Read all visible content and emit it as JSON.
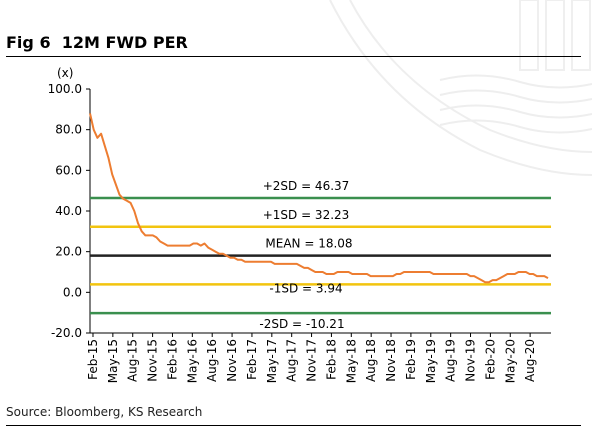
{
  "figure": {
    "title": "Fig 6  12M FWD PER",
    "source": "Source: Bloomberg, KS Research"
  },
  "chart_data": {
    "type": "line",
    "title": "Fig 6  12M FWD PER",
    "unit_label": "(x)",
    "xlabel": "",
    "ylabel": "",
    "ylim": [
      -20,
      100
    ],
    "yticks": [
      "100.0",
      "80.0",
      "60.0",
      "40.0",
      "20.0",
      "0.0",
      "-20.0"
    ],
    "ytick_values": [
      100,
      80,
      60,
      40,
      20,
      0,
      -20
    ],
    "xticks": [
      "Feb-15",
      "May-15",
      "Aug-15",
      "Nov-15",
      "Feb-16",
      "May-16",
      "Aug-16",
      "Nov-16",
      "Feb-17",
      "May-17",
      "Aug-17",
      "Nov-17",
      "Feb-18",
      "May-18",
      "Aug-18",
      "Nov-18",
      "Feb-19",
      "May-19",
      "Aug-19",
      "Nov-19",
      "Feb-20",
      "May-20",
      "Aug-20"
    ],
    "grid": false,
    "colors": {
      "series": "#ED7D31",
      "sd2": "#3A8F4E",
      "sd1": "#F2C40F",
      "mean": "#222222"
    },
    "series": [
      {
        "values": [
          [
            0,
            88
          ],
          [
            0.3,
            80
          ],
          [
            0.6,
            76
          ],
          [
            0.9,
            78
          ],
          [
            1.2,
            72
          ],
          [
            1.5,
            66
          ],
          [
            1.8,
            58
          ],
          [
            2.1,
            53
          ],
          [
            2.4,
            48
          ],
          [
            2.7,
            46
          ],
          [
            3.0,
            45
          ],
          [
            3.3,
            44
          ],
          [
            3.6,
            40
          ],
          [
            3.9,
            34
          ],
          [
            4.2,
            30
          ],
          [
            4.5,
            28
          ],
          [
            4.8,
            28
          ],
          [
            5.1,
            28
          ],
          [
            5.4,
            27
          ],
          [
            5.7,
            25
          ],
          [
            6.0,
            24
          ],
          [
            6.3,
            23
          ],
          [
            6.6,
            23
          ],
          [
            6.9,
            23
          ],
          [
            7.2,
            23
          ],
          [
            7.5,
            23
          ],
          [
            7.8,
            23
          ],
          [
            8.1,
            23
          ],
          [
            8.4,
            24
          ],
          [
            8.7,
            24
          ],
          [
            9.0,
            23
          ],
          [
            9.3,
            24
          ],
          [
            9.6,
            22
          ],
          [
            9.9,
            21
          ],
          [
            10.2,
            20
          ],
          [
            10.5,
            19
          ],
          [
            10.8,
            19
          ],
          [
            11.1,
            18
          ],
          [
            11.4,
            17
          ],
          [
            11.7,
            17
          ],
          [
            12.0,
            16
          ],
          [
            12.3,
            16
          ],
          [
            12.6,
            15
          ],
          [
            12.9,
            15
          ],
          [
            13.2,
            15
          ],
          [
            13.5,
            15
          ],
          [
            13.8,
            15
          ],
          [
            14.1,
            15
          ],
          [
            14.4,
            15
          ],
          [
            14.7,
            15
          ],
          [
            15.0,
            14
          ],
          [
            15.3,
            14
          ],
          [
            15.6,
            14
          ],
          [
            15.9,
            14
          ],
          [
            16.2,
            14
          ],
          [
            16.5,
            14
          ],
          [
            16.8,
            14
          ],
          [
            17.1,
            13
          ],
          [
            17.4,
            12
          ],
          [
            17.7,
            12
          ],
          [
            18.0,
            11
          ],
          [
            18.3,
            10
          ],
          [
            18.6,
            10
          ],
          [
            18.9,
            10
          ],
          [
            19.2,
            9
          ],
          [
            19.5,
            9
          ],
          [
            19.8,
            9
          ],
          [
            20.1,
            10
          ],
          [
            20.4,
            10
          ],
          [
            20.7,
            10
          ],
          [
            21.0,
            10
          ],
          [
            21.3,
            9
          ],
          [
            21.6,
            9
          ],
          [
            21.9,
            9
          ],
          [
            22.2,
            9
          ],
          [
            22.5,
            9
          ],
          [
            22.8,
            8
          ],
          [
            23.1,
            8
          ],
          [
            23.4,
            8
          ],
          [
            23.7,
            8
          ],
          [
            24.0,
            8
          ],
          [
            24.3,
            8
          ],
          [
            24.6,
            8
          ],
          [
            24.9,
            9
          ],
          [
            25.2,
            9
          ],
          [
            25.5,
            10
          ],
          [
            25.8,
            10
          ],
          [
            26.1,
            10
          ],
          [
            26.4,
            10
          ],
          [
            26.7,
            10
          ],
          [
            27.0,
            10
          ],
          [
            27.3,
            10
          ],
          [
            27.6,
            10
          ],
          [
            27.9,
            9
          ],
          [
            28.2,
            9
          ],
          [
            28.5,
            9
          ],
          [
            28.8,
            9
          ],
          [
            29.1,
            9
          ],
          [
            29.4,
            9
          ],
          [
            29.7,
            9
          ],
          [
            30.0,
            9
          ],
          [
            30.3,
            9
          ],
          [
            30.6,
            9
          ],
          [
            30.9,
            8
          ],
          [
            31.2,
            8
          ],
          [
            31.5,
            7
          ],
          [
            31.8,
            6
          ],
          [
            32.1,
            5
          ],
          [
            32.4,
            5
          ],
          [
            32.7,
            6
          ],
          [
            33.0,
            6
          ],
          [
            33.3,
            7
          ],
          [
            33.6,
            8
          ],
          [
            33.9,
            9
          ],
          [
            34.2,
            9
          ],
          [
            34.5,
            9
          ],
          [
            34.8,
            10
          ],
          [
            35.1,
            10
          ],
          [
            35.4,
            10
          ],
          [
            35.7,
            9
          ],
          [
            36.0,
            9
          ],
          [
            36.3,
            8
          ],
          [
            36.6,
            8
          ],
          [
            36.9,
            8
          ],
          [
            37.2,
            7
          ]
        ]
      }
    ],
    "reference_lines": [
      {
        "label": "+2SD = 46.37",
        "value": 46.37,
        "kind": "sd2"
      },
      {
        "label": "+1SD = 32.23",
        "value": 32.23,
        "kind": "sd1"
      },
      {
        "label": "MEAN = 18.08",
        "value": 18.08,
        "kind": "mean"
      },
      {
        "label": "-1SD = 3.94",
        "value": 3.94,
        "kind": "sd1"
      },
      {
        "label": "-2SD = -10.21",
        "value": -10.21,
        "kind": "sd2"
      }
    ]
  }
}
